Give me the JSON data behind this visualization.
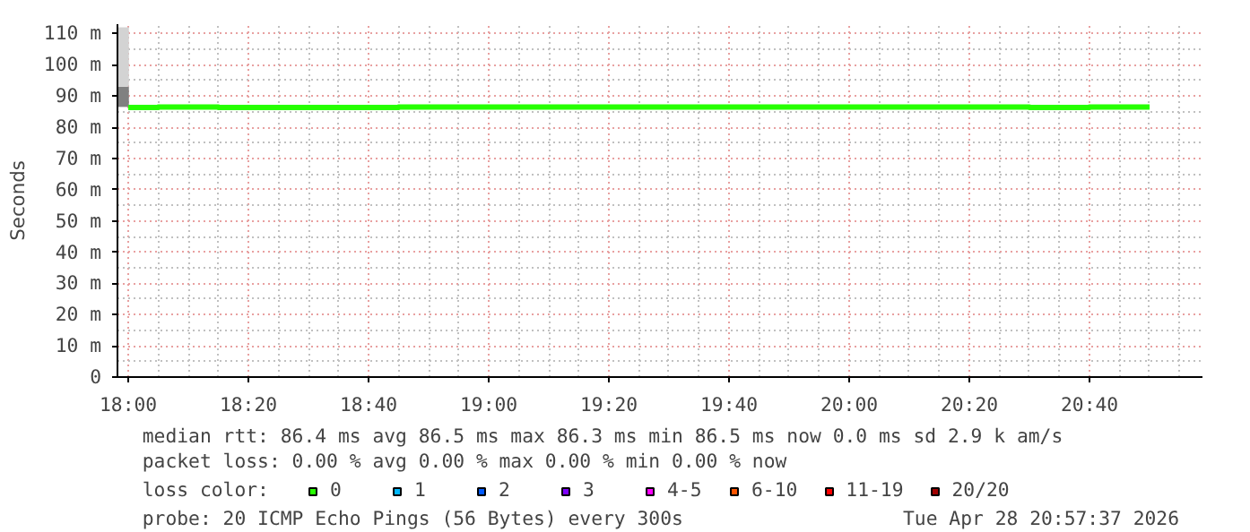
{
  "chart_data": {
    "type": "step",
    "ylabel": "Seconds",
    "legend_title": "loss color:",
    "legend": "bottom",
    "grid": true,
    "xlim": [
      17.97,
      20.98
    ],
    "xticks": [
      {
        "value": 18,
        "label": "18:00"
      },
      {
        "value": 18.3333,
        "label": "18:20"
      },
      {
        "value": 18.6667,
        "label": "18:40"
      },
      {
        "value": 19,
        "label": "19:00"
      },
      {
        "value": 19.3333,
        "label": "19:20"
      },
      {
        "value": 19.6667,
        "label": "19:40"
      },
      {
        "value": 20,
        "label": "20:00"
      },
      {
        "value": 20.3333,
        "label": "20:20"
      },
      {
        "value": 20.6667,
        "label": "20:40"
      }
    ],
    "ylim": [
      0,
      113
    ],
    "yticks": [
      0,
      {
        "value": 10,
        "label": "10 m"
      },
      {
        "value": 20,
        "label": "20 m"
      },
      {
        "value": 30,
        "label": "30 m"
      },
      {
        "value": 40,
        "label": "40 m"
      },
      {
        "value": 50,
        "label": "50 m"
      },
      {
        "value": 60,
        "label": "60 m"
      },
      {
        "value": 70,
        "label": "70 m"
      },
      {
        "value": 80,
        "label": "80 m"
      },
      {
        "value": 90,
        "label": "90 m"
      },
      {
        "value": 100,
        "label": "100 m"
      },
      {
        "value": 110,
        "label": "110 m"
      }
    ],
    "series": [
      {
        "type": "bar",
        "color": "#808080",
        "x": [
          17.985
        ],
        "base": [
          86.5
        ],
        "values": [
          6.5
        ]
      },
      {
        "type": "bar",
        "color": "#d3d3d3",
        "x": [
          17.985
        ],
        "base": [
          93
        ],
        "values": [
          19
        ]
      },
      {
        "name": "0",
        "color": "#26ff00",
        "x": [
          18,
          18.0833,
          18.1667,
          18.25,
          18.3333,
          18.4167,
          18.5,
          18.5833,
          18.6667,
          18.75,
          18.8333,
          18.9167,
          19,
          19.0833,
          19.1667,
          19.25,
          19.3333,
          19.4167,
          19.5,
          19.5833,
          19.6667,
          19.75,
          19.8333,
          19.9167,
          20,
          20.0833,
          20.1667,
          20.25,
          20.3333,
          20.4167,
          20.5,
          20.5833,
          20.6667,
          20.75,
          20.8333
        ],
        "values": [
          86.3,
          86.5,
          86.5,
          86.3,
          86.3,
          86.3,
          86.3,
          86.3,
          86.3,
          86.5,
          86.5,
          86.5,
          86.5,
          86.5,
          86.5,
          86.5,
          86.5,
          86.5,
          86.5,
          86.5,
          86.5,
          86.5,
          86.5,
          86.5,
          86.5,
          86.5,
          86.5,
          86.5,
          86.5,
          86.5,
          86.3,
          86.3,
          86.5,
          86.5,
          86.5
        ]
      },
      {
        "name": "1",
        "color": "#00b8ff"
      },
      {
        "name": "2",
        "color": "#0059ff"
      },
      {
        "name": "3",
        "color": "#7e00ff"
      },
      {
        "name": "4-5",
        "color": "#ff00ff"
      },
      {
        "name": "6-10",
        "color": "#ff5500"
      },
      {
        "name": "11-19",
        "color": "#ff0000"
      },
      {
        "name": "20/20",
        "color": "#a10000"
      }
    ],
    "annotations": [
      "median rtt:  86.4 ms avg  86.5 ms max  86.3 ms min  86.5 ms now  0.0 ms sd  2.9 k am/s",
      "packet loss: 0.00 % avg  0.00 % max  0.00 % min  0.00 % now",
      "probe:       20 ICMP Echo Pings (56 Bytes) every 300s",
      "Tue Apr 28 20:57:37 2026"
    ]
  }
}
